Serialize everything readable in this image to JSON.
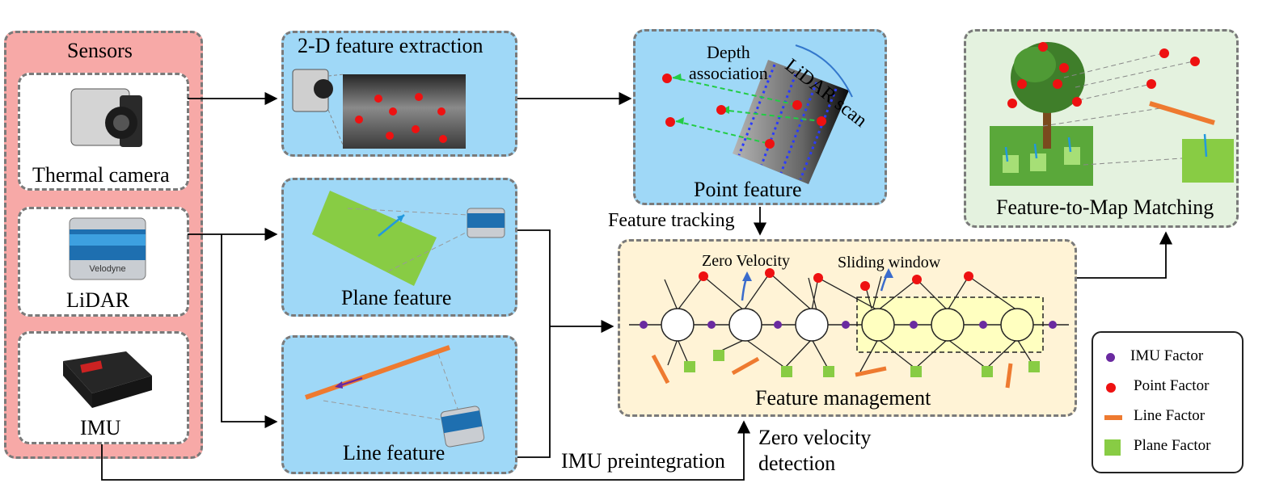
{
  "sensors": {
    "title": "Sensors",
    "thermal_camera": "Thermal camera",
    "lidar": "LiDAR",
    "imu": "IMU",
    "lidar_brand": "Velodyne"
  },
  "modules": {
    "feature_extraction_2d": "2-D feature extraction",
    "plane_feature": "Plane feature",
    "line_feature": "Line feature",
    "point_feature": "Point feature",
    "depth_association": "Depth\nassociation",
    "lidar_scan": "LiDAR scan",
    "feature_to_map": "Feature-to-Map Matching",
    "feature_management": "Feature management",
    "zero_velocity": "Zero Velocity",
    "sliding_window": "Sliding window"
  },
  "flow_labels": {
    "feature_tracking": "Feature tracking",
    "imu_preintegration": "IMU preintegration",
    "zero_velocity_detection": "Zero velocity\ndetection"
  },
  "legend": {
    "items": [
      {
        "label": "IMU Factor",
        "color": "#6a2aa0",
        "shape": "dot"
      },
      {
        "label": "Point Factor",
        "color": "#ee1111",
        "shape": "dot"
      },
      {
        "label": "Line Factor",
        "color": "#ee7a30",
        "shape": "bar"
      },
      {
        "label": "Plane Factor",
        "color": "#88cc44",
        "shape": "square"
      }
    ]
  },
  "colors": {
    "sensors_fill": "#f7a9a7",
    "module_fill": "#9fd8f7",
    "management_fill": "#fff3d6",
    "map_fill": "#e4f2df",
    "window_fill": "#ffffc0",
    "point": "#ee1111",
    "imu": "#6a2aa0",
    "line": "#ee7a30",
    "plane": "#88cc44",
    "vector": "#2299dd"
  }
}
